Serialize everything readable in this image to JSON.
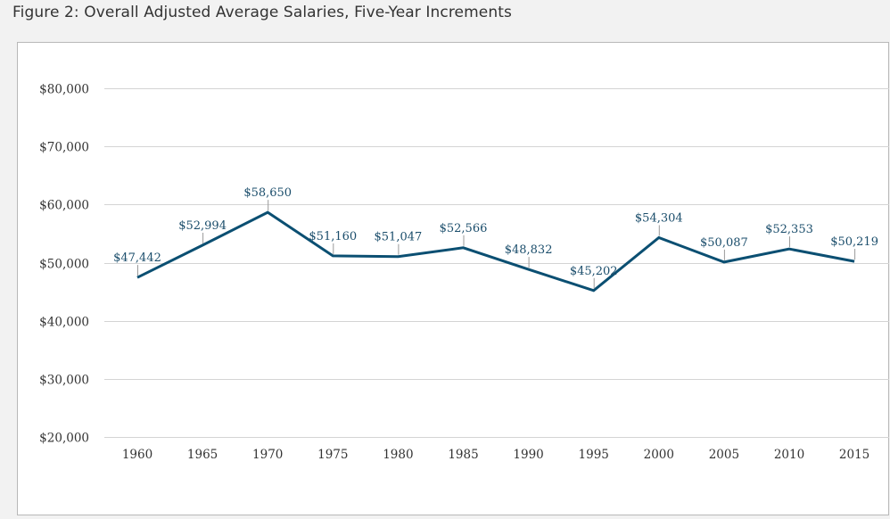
{
  "figure": {
    "title": "Figure 2: Overall Adjusted Average Salaries, Five-Year Increments"
  },
  "chart_data": {
    "type": "line",
    "title": "",
    "xlabel": "",
    "ylabel": "",
    "categories": [
      "1960",
      "1965",
      "1970",
      "1975",
      "1980",
      "1985",
      "1990",
      "1995",
      "2000",
      "2005",
      "2010",
      "2015"
    ],
    "series": [
      {
        "values": [
          47442,
          52994,
          58650,
          51160,
          51047,
          52566,
          48832,
          45202,
          54304,
          50087,
          52353,
          50219
        ],
        "data_labels": [
          "$47,442",
          "$52,994",
          "$58,650",
          "$51,160",
          "$51,047",
          "$52,566",
          "$48,832",
          "$45,202",
          "$54,304",
          "$50,087",
          "$52,353",
          "$50,219"
        ]
      }
    ],
    "ylim": [
      20000,
      80000
    ],
    "yticks": [
      20000,
      30000,
      40000,
      50000,
      60000,
      70000,
      80000
    ],
    "ytick_labels": [
      "$20,000",
      "$30,000",
      "$40,000",
      "$50,000",
      "$60,000",
      "$70,000",
      "$80,000"
    ],
    "grid": true,
    "colors": {
      "line": "#0b4f72",
      "label": "#1a4d6b",
      "grid": "#d4d4d4",
      "leader": "#9a9a9a"
    }
  }
}
